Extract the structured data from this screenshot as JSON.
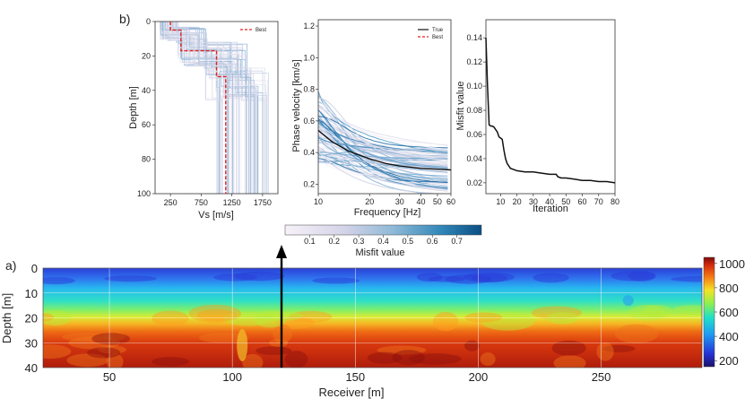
{
  "panel_labels": {
    "b": "b)",
    "a": "a)"
  },
  "chart_data": [
    {
      "type": "line",
      "panel": "b-left",
      "xlabel": "Vs  [m/s]",
      "ylabel": "Depth [m]",
      "xlim": [
        0,
        2000
      ],
      "ylim": [
        100,
        0
      ],
      "xticks": [
        250,
        750,
        1250,
        1750
      ],
      "yticks": [
        0,
        20,
        40,
        60,
        80,
        100
      ],
      "legend": {
        "position": "top-right",
        "entries": [
          {
            "name": "Best",
            "color": "#e32020",
            "style": "dashed"
          }
        ]
      },
      "series": [
        {
          "name": "Best",
          "color": "#e32020",
          "depth": [
            0,
            5,
            5,
            17,
            17,
            32,
            32,
            100
          ],
          "vs": [
            250,
            250,
            420,
            420,
            1000,
            1000,
            1150,
            1150
          ]
        }
      ]
    },
    {
      "type": "line",
      "panel": "b-middle",
      "xlabel": "Frequency [Hz]",
      "ylabel": "Phase  velocity [km/s]",
      "xscale": "log",
      "xlim": [
        10,
        60
      ],
      "ylim": [
        0.14,
        1.24
      ],
      "xticks": [
        10,
        20,
        30,
        40,
        50,
        60
      ],
      "yticks": [
        0.2,
        0.4,
        0.6,
        0.8,
        1.0,
        1.2
      ],
      "legend": {
        "position": "top-right",
        "entries": [
          {
            "name": "True",
            "color": "#111111",
            "style": "solid"
          },
          {
            "name": "Best",
            "color": "#e32020",
            "style": "dashed"
          }
        ]
      },
      "series": [
        {
          "name": "True",
          "color": "#111111",
          "x": [
            10,
            12,
            15,
            20,
            25,
            30,
            40,
            50,
            60
          ],
          "y": [
            0.54,
            0.47,
            0.41,
            0.36,
            0.33,
            0.315,
            0.3,
            0.295,
            0.29
          ]
        }
      ]
    },
    {
      "type": "line",
      "panel": "b-right",
      "xlabel": "Iteration",
      "ylabel": "Misfit value",
      "xlim": [
        1,
        80
      ],
      "ylim": [
        0.011,
        0.155
      ],
      "xticks": [
        10,
        20,
        30,
        40,
        50,
        60,
        70,
        80
      ],
      "yticks": [
        0.02,
        0.04,
        0.06,
        0.08,
        0.1,
        0.12,
        0.14
      ],
      "series": [
        {
          "name": "",
          "color": "#111111",
          "x": [
            1,
            2,
            3,
            4,
            5,
            6,
            7,
            8,
            9,
            10,
            11,
            12,
            13,
            14,
            15,
            16,
            18,
            20,
            25,
            30,
            35,
            40,
            44,
            45,
            47,
            50,
            55,
            60,
            65,
            70,
            75,
            80
          ],
          "y": [
            0.14,
            0.1,
            0.068,
            0.067,
            0.067,
            0.066,
            0.064,
            0.062,
            0.058,
            0.057,
            0.056,
            0.047,
            0.04,
            0.036,
            0.034,
            0.032,
            0.031,
            0.03,
            0.029,
            0.029,
            0.028,
            0.027,
            0.027,
            0.025,
            0.024,
            0.024,
            0.023,
            0.022,
            0.022,
            0.021,
            0.021,
            0.02
          ]
        }
      ]
    },
    {
      "type": "heatmap",
      "panel": "a",
      "xlabel": "Receiver [m]",
      "ylabel": "Depth [m]",
      "xlim": [
        23,
        291
      ],
      "ylim": [
        40,
        0
      ],
      "xticks": [
        50,
        100,
        150,
        200,
        250
      ],
      "yticks": [
        0,
        10,
        20,
        30,
        40
      ],
      "marker_x": 120,
      "colorbar": {
        "ticks": [
          200,
          400,
          600,
          800,
          1000
        ],
        "range": [
          150,
          1050
        ],
        "colormap": "jet"
      },
      "layers": [
        {
          "depth_top": 0,
          "depth_bottom": 6,
          "value": 250
        },
        {
          "depth_top": 6,
          "depth_bottom": 17,
          "value": 450
        },
        {
          "depth_top": 17,
          "depth_bottom": 30,
          "value": 780
        },
        {
          "depth_top": 30,
          "depth_bottom": 40,
          "value": 960
        }
      ]
    }
  ],
  "misfit_colorbar": {
    "label": "Misfit value",
    "ticks": [
      "0.1",
      "0.2",
      "0.3",
      "0.4",
      "0.5",
      "0.6",
      "0.7"
    ],
    "range": [
      0.0,
      0.8
    ],
    "colors": [
      "#f7f1f8",
      "#0c4e83"
    ]
  }
}
